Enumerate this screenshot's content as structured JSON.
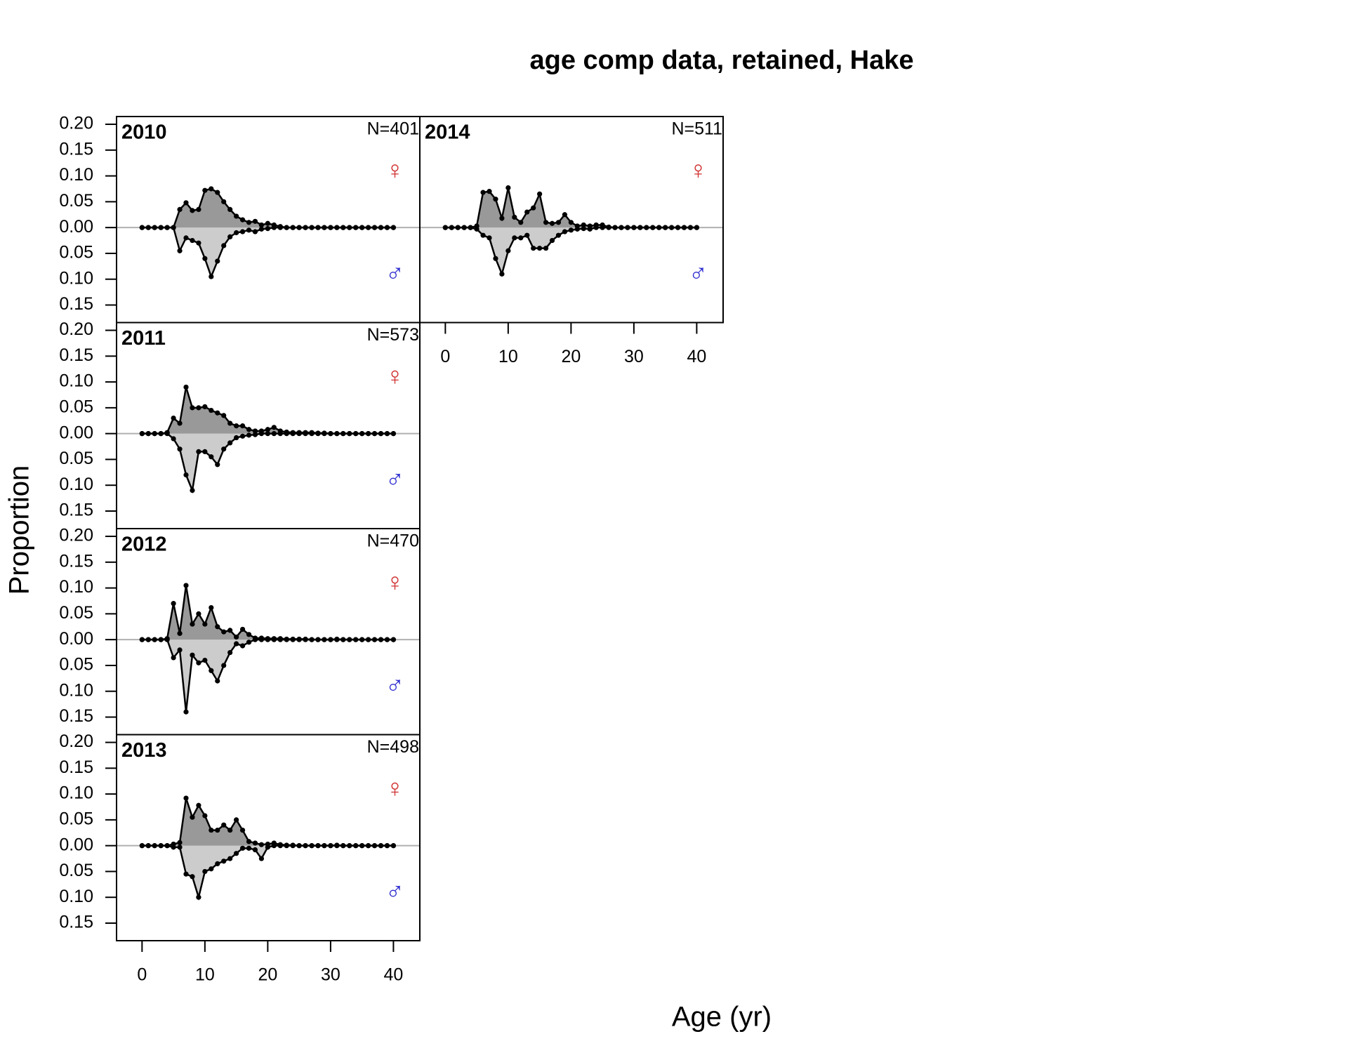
{
  "title": "age comp data, retained, Hake",
  "x_label": "Age (yr)",
  "y_label": "Proportion",
  "chart_data": [
    {
      "type": "area",
      "title": "2010",
      "annotation": "N=401",
      "x": [
        0,
        1,
        2,
        3,
        4,
        5,
        6,
        7,
        8,
        9,
        10,
        11,
        12,
        13,
        14,
        15,
        16,
        17,
        18,
        19,
        20,
        21,
        22,
        23,
        24,
        25,
        26,
        27,
        28,
        29,
        30,
        31,
        32,
        33,
        34,
        35,
        36,
        37,
        38,
        39,
        40
      ],
      "series": [
        {
          "name": "♀",
          "color": "#d03030",
          "fill": "#999999",
          "values": [
            0,
            0,
            0,
            0,
            0,
            0,
            0.035,
            0.048,
            0.033,
            0.035,
            0.072,
            0.075,
            0.068,
            0.05,
            0.035,
            0.022,
            0.015,
            0.01,
            0.012,
            0.005,
            0.008,
            0.005,
            0.002,
            0,
            0,
            0,
            0,
            0,
            0,
            0,
            0,
            0,
            0,
            0,
            0,
            0,
            0,
            0,
            0,
            0,
            0
          ]
        },
        {
          "name": "♂",
          "color": "#2b2bd0",
          "fill": "#cccccc",
          "values": [
            0,
            0,
            0,
            0,
            0,
            0,
            -0.045,
            -0.02,
            -0.025,
            -0.03,
            -0.06,
            -0.095,
            -0.065,
            -0.035,
            -0.018,
            -0.01,
            -0.008,
            -0.005,
            -0.008,
            -0.003,
            -0.002,
            0,
            0,
            0,
            0,
            0,
            0,
            0,
            0,
            0,
            0,
            0,
            0,
            0,
            0,
            0,
            0,
            0,
            0,
            0,
            0
          ]
        }
      ],
      "xlim": [
        -4.06,
        44.2
      ],
      "ylim": [
        -0.184,
        0.215
      ],
      "yticks": [
        {
          "value": 0.2,
          "label": "0.20"
        },
        {
          "value": 0.15,
          "label": "0.15"
        },
        {
          "value": 0.1,
          "label": "0.10"
        },
        {
          "value": 0.05,
          "label": "0.05"
        },
        {
          "value": 0,
          "label": "0.00"
        },
        {
          "value": -0.05,
          "label": "0.05"
        },
        {
          "value": -0.1,
          "label": "0.10"
        },
        {
          "value": -0.15,
          "label": "0.15"
        }
      ]
    },
    {
      "type": "area",
      "title": "2011",
      "annotation": "N=573",
      "x": [
        0,
        1,
        2,
        3,
        4,
        5,
        6,
        7,
        8,
        9,
        10,
        11,
        12,
        13,
        14,
        15,
        16,
        17,
        18,
        19,
        20,
        21,
        22,
        23,
        24,
        25,
        26,
        27,
        28,
        29,
        30,
        31,
        32,
        33,
        34,
        35,
        36,
        37,
        38,
        39,
        40
      ],
      "series": [
        {
          "name": "♀",
          "color": "#d03030",
          "fill": "#999999",
          "values": [
            0,
            0,
            0,
            0,
            0.002,
            0.03,
            0.02,
            0.09,
            0.05,
            0.05,
            0.052,
            0.045,
            0.04,
            0.035,
            0.02,
            0.015,
            0.015,
            0.008,
            0.005,
            0.005,
            0.008,
            0.012,
            0.005,
            0.003,
            0.002,
            0.002,
            0.002,
            0.002,
            0.001,
            0.001,
            0,
            0,
            0,
            0,
            0,
            0,
            0,
            0,
            0,
            0,
            0
          ]
        },
        {
          "name": "♂",
          "color": "#2b2bd0",
          "fill": "#cccccc",
          "values": [
            0,
            0,
            0,
            0,
            0,
            -0.01,
            -0.03,
            -0.08,
            -0.11,
            -0.035,
            -0.035,
            -0.045,
            -0.06,
            -0.03,
            -0.018,
            -0.008,
            -0.005,
            -0.003,
            -0.002,
            0,
            0,
            0,
            0,
            0,
            0,
            0,
            0,
            0,
            0,
            0,
            0,
            0,
            0,
            0,
            0,
            0,
            0,
            0,
            0,
            0,
            0
          ]
        }
      ],
      "xlim": [
        -4.06,
        44.2
      ],
      "ylim": [
        -0.184,
        0.215
      ],
      "yticks": [
        {
          "value": 0.2,
          "label": "0.20"
        },
        {
          "value": 0.15,
          "label": "0.15"
        },
        {
          "value": 0.1,
          "label": "0.10"
        },
        {
          "value": 0.05,
          "label": "0.05"
        },
        {
          "value": 0,
          "label": "0.00"
        },
        {
          "value": -0.05,
          "label": "0.05"
        },
        {
          "value": -0.1,
          "label": "0.10"
        },
        {
          "value": -0.15,
          "label": "0.15"
        }
      ]
    },
    {
      "type": "area",
      "title": "2012",
      "annotation": "N=470",
      "x": [
        0,
        1,
        2,
        3,
        4,
        5,
        6,
        7,
        8,
        9,
        10,
        11,
        12,
        13,
        14,
        15,
        16,
        17,
        18,
        19,
        20,
        21,
        22,
        23,
        24,
        25,
        26,
        27,
        28,
        29,
        30,
        31,
        32,
        33,
        34,
        35,
        36,
        37,
        38,
        39,
        40
      ],
      "series": [
        {
          "name": "♀",
          "color": "#d03030",
          "fill": "#999999",
          "values": [
            0,
            0,
            0,
            0,
            0.002,
            0.07,
            0.012,
            0.105,
            0.03,
            0.05,
            0.03,
            0.062,
            0.025,
            0.015,
            0.018,
            0.005,
            0.02,
            0.01,
            0.003,
            0.003,
            0.002,
            0.002,
            0.002,
            0.001,
            0.001,
            0.001,
            0.001,
            0,
            0,
            0,
            0,
            0.001,
            0,
            0,
            0,
            0,
            0,
            0,
            0,
            0,
            0
          ]
        },
        {
          "name": "♂",
          "color": "#2b2bd0",
          "fill": "#cccccc",
          "values": [
            0,
            0,
            0,
            0,
            0,
            -0.035,
            -0.02,
            -0.14,
            -0.03,
            -0.045,
            -0.04,
            -0.06,
            -0.08,
            -0.05,
            -0.025,
            -0.008,
            -0.012,
            -0.005,
            0,
            0,
            0,
            0,
            0,
            0,
            0,
            0,
            0,
            0,
            0,
            0,
            0,
            0,
            0,
            0,
            0,
            0,
            0,
            0,
            0,
            0,
            0
          ]
        }
      ],
      "xlim": [
        -4.06,
        44.2
      ],
      "ylim": [
        -0.184,
        0.215
      ],
      "yticks": [
        {
          "value": 0.2,
          "label": "0.20"
        },
        {
          "value": 0.15,
          "label": "0.15"
        },
        {
          "value": 0.1,
          "label": "0.10"
        },
        {
          "value": 0.05,
          "label": "0.05"
        },
        {
          "value": 0,
          "label": "0.00"
        },
        {
          "value": -0.05,
          "label": "0.05"
        },
        {
          "value": -0.1,
          "label": "0.10"
        },
        {
          "value": -0.15,
          "label": "0.15"
        }
      ]
    },
    {
      "type": "area",
      "title": "2013",
      "annotation": "N=498",
      "x": [
        0,
        1,
        2,
        3,
        4,
        5,
        6,
        7,
        8,
        9,
        10,
        11,
        12,
        13,
        14,
        15,
        16,
        17,
        18,
        19,
        20,
        21,
        22,
        23,
        24,
        25,
        26,
        27,
        28,
        29,
        30,
        31,
        32,
        33,
        34,
        35,
        36,
        37,
        38,
        39,
        40
      ],
      "series": [
        {
          "name": "♀",
          "color": "#d03030",
          "fill": "#999999",
          "values": [
            0,
            0,
            0,
            0,
            0,
            0.003,
            0.006,
            0.092,
            0.055,
            0.078,
            0.058,
            0.03,
            0.03,
            0.04,
            0.03,
            0.05,
            0.03,
            0.008,
            0.005,
            0.002,
            0.003,
            0.005,
            0.002,
            0.001,
            0.001,
            0,
            0,
            0,
            0,
            0,
            0,
            0.001,
            0,
            0,
            0,
            0,
            0,
            0,
            0,
            0,
            0
          ]
        },
        {
          "name": "♂",
          "color": "#2b2bd0",
          "fill": "#cccccc",
          "values": [
            0,
            0,
            0,
            0,
            0,
            -0.003,
            -0.003,
            -0.055,
            -0.06,
            -0.1,
            -0.05,
            -0.045,
            -0.035,
            -0.03,
            -0.025,
            -0.015,
            -0.005,
            -0.005,
            -0.008,
            -0.025,
            -0.003,
            0,
            0,
            0,
            0,
            0,
            0,
            0,
            0,
            0,
            0,
            0,
            0,
            0,
            0,
            0,
            0,
            0,
            0,
            0,
            0
          ]
        }
      ],
      "xlim": [
        -4.06,
        44.2
      ],
      "ylim": [
        -0.184,
        0.215
      ],
      "xticks": [
        0,
        10,
        20,
        30,
        40
      ],
      "yticks": [
        {
          "value": 0.2,
          "label": "0.20"
        },
        {
          "value": 0.15,
          "label": "0.15"
        },
        {
          "value": 0.1,
          "label": "0.10"
        },
        {
          "value": 0.05,
          "label": "0.05"
        },
        {
          "value": 0,
          "label": "0.00"
        },
        {
          "value": -0.05,
          "label": "0.05"
        },
        {
          "value": -0.1,
          "label": "0.10"
        },
        {
          "value": -0.15,
          "label": "0.15"
        }
      ]
    },
    {
      "type": "area",
      "title": "2014",
      "annotation": "N=511",
      "x": [
        0,
        1,
        2,
        3,
        4,
        5,
        6,
        7,
        8,
        9,
        10,
        11,
        12,
        13,
        14,
        15,
        16,
        17,
        18,
        19,
        20,
        21,
        22,
        23,
        24,
        25,
        26,
        27,
        28,
        29,
        30,
        31,
        32,
        33,
        34,
        35,
        36,
        37,
        38,
        39,
        40
      ],
      "series": [
        {
          "name": "♀",
          "color": "#d03030",
          "fill": "#999999",
          "values": [
            0,
            0,
            0,
            0,
            0,
            0.003,
            0.068,
            0.07,
            0.055,
            0.018,
            0.077,
            0.02,
            0.01,
            0.03,
            0.038,
            0.065,
            0.01,
            0.008,
            0.01,
            0.025,
            0.01,
            0.003,
            0.005,
            0.003,
            0.005,
            0.005,
            0.001,
            0,
            0,
            0,
            0,
            0,
            0,
            0,
            0,
            0,
            0,
            0,
            0,
            0,
            0
          ]
        },
        {
          "name": "♂",
          "color": "#2b2bd0",
          "fill": "#cccccc",
          "values": [
            0,
            0,
            0,
            0,
            0,
            -0.003,
            -0.015,
            -0.02,
            -0.06,
            -0.09,
            -0.045,
            -0.02,
            -0.02,
            -0.015,
            -0.04,
            -0.04,
            -0.04,
            -0.025,
            -0.015,
            -0.008,
            -0.005,
            -0.003,
            -0.002,
            -0.003,
            0,
            0,
            0,
            0,
            0,
            0,
            0,
            0,
            0,
            0,
            0,
            0,
            0,
            0,
            0,
            0,
            0
          ]
        }
      ],
      "xlim": [
        -4.06,
        44.2
      ],
      "ylim": [
        -0.184,
        0.215
      ],
      "xticks": [
        0,
        10,
        20,
        30,
        40
      ]
    }
  ]
}
